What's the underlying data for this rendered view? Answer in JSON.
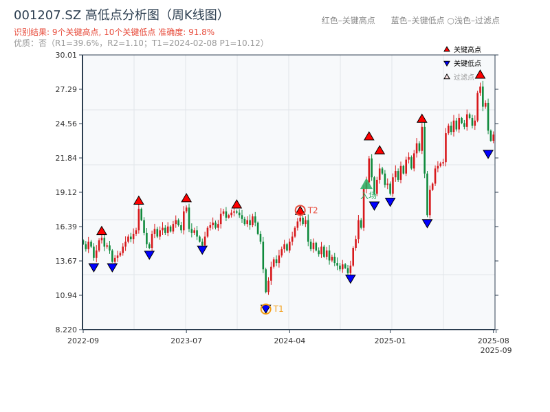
{
  "title": "001207.SZ 高低点分析图（周K线图）",
  "subtitle_result": "识别结果: 9个关键高点, 10个关键低点  准确度: 91.8%",
  "subtitle_quality": "优质：否（R1=39.6%，R2=1.10；T1=2024-02-08 P1=10.12）",
  "header_legend": {
    "red": "红色–关键高点",
    "blue": "蓝色–关键低点",
    "light": "○浅色–过滤点"
  },
  "chart_data": {
    "type": "candlestick",
    "ylim": [
      8.22,
      30.01
    ],
    "yticks": [
      "30.01",
      "27.29",
      "24.56",
      "21.84",
      "19.12",
      "16.39",
      "13.67",
      "10.94",
      "8.220"
    ],
    "xticks": [
      {
        "label": "2022-09",
        "index": 0
      },
      {
        "label": "2023-07",
        "index": 39
      },
      {
        "label": "2024-04",
        "index": 78
      },
      {
        "label": "2025-01",
        "index": 116
      },
      {
        "label": "2025-08",
        "index": 155
      },
      {
        "label": "2025-09",
        "index": 156
      }
    ],
    "grid": true,
    "colors": {
      "up": "#d7191c",
      "down": "#0f8a3c",
      "high_marker": "#ff0000",
      "low_marker": "#0000ff",
      "t1": "#f39c12",
      "t2": "#e74c3c",
      "entry": "#27ae60"
    },
    "close": [
      15.0,
      14.6,
      15.2,
      14.8,
      13.9,
      14.5,
      15.3,
      15.5,
      14.8,
      14.9,
      14.5,
      13.6,
      13.9,
      14.1,
      14.3,
      14.8,
      15.2,
      15.6,
      15.4,
      15.8,
      16.1,
      17.8,
      16.9,
      15.9,
      15.0,
      14.7,
      15.8,
      16.2,
      15.6,
      16.1,
      16.3,
      15.9,
      16.4,
      16.0,
      16.6,
      16.9,
      16.5,
      16.1,
      17.6,
      17.9,
      16.2,
      15.9,
      16.1,
      15.6,
      15.2,
      14.9,
      15.6,
      16.3,
      16.5,
      16.7,
      16.3,
      16.6,
      17.4,
      17.6,
      17.1,
      17.3,
      17.5,
      17.6,
      17.5,
      17.3,
      17.0,
      16.6,
      16.9,
      16.5,
      17.2,
      16.7,
      15.8,
      15.2,
      13.0,
      11.2,
      12.1,
      13.2,
      13.8,
      13.5,
      14.1,
      14.6,
      15.0,
      14.5,
      15.2,
      15.6,
      16.3,
      16.8,
      17.1,
      16.6,
      16.9,
      15.2,
      14.6,
      15.1,
      14.5,
      14.2,
      14.8,
      14.0,
      14.5,
      13.7,
      14.0,
      13.5,
      13.3,
      13.0,
      13.4,
      13.1,
      12.7,
      13.3,
      14.7,
      15.4,
      16.9,
      16.3,
      19.4,
      19.9,
      21.8,
      20.3,
      19.0,
      20.1,
      21.0,
      20.6,
      19.7,
      19.8,
      19.0,
      20.3,
      20.8,
      20.1,
      21.2,
      20.6,
      21.7,
      21.9,
      21.0,
      22.2,
      23.0,
      22.4,
      24.3,
      20.6,
      17.3,
      19.3,
      19.8,
      21.0,
      21.2,
      21.4,
      21.5,
      23.8,
      24.4,
      23.9,
      24.8,
      24.1,
      25.0,
      24.6,
      24.3,
      25.3,
      25.0,
      24.4,
      24.8,
      27.0,
      27.5,
      25.9,
      26.2,
      24.0,
      23.2,
      23.7
    ],
    "key_highs": [
      {
        "index": 7,
        "price": 15.7
      },
      {
        "index": 21,
        "price": 18.1
      },
      {
        "index": 39,
        "price": 18.3
      },
      {
        "index": 58,
        "price": 17.8
      },
      {
        "index": 82,
        "price": 17.3
      },
      {
        "index": 108,
        "price": 23.2
      },
      {
        "index": 112,
        "price": 22.1
      },
      {
        "index": 128,
        "price": 24.6
      },
      {
        "index": 150,
        "price": 28.1
      }
    ],
    "key_lows": [
      {
        "index": 4,
        "price": 13.4
      },
      {
        "index": 11,
        "price": 13.4
      },
      {
        "index": 25,
        "price": 14.4
      },
      {
        "index": 45,
        "price": 14.8
      },
      {
        "index": 69,
        "price": 10.12
      },
      {
        "index": 101,
        "price": 12.5
      },
      {
        "index": 110,
        "price": 18.3
      },
      {
        "index": 116,
        "price": 18.6
      },
      {
        "index": 130,
        "price": 16.9
      },
      {
        "index": 153,
        "price": 22.4
      }
    ],
    "annotations": [
      {
        "label": "T1",
        "index": 69,
        "price": 10.12,
        "color": "#f39c12"
      },
      {
        "label": "T2",
        "index": 82,
        "price": 17.3,
        "color": "#e74c3c"
      },
      {
        "label": "入场",
        "index": 107,
        "price": 19.6,
        "color": "#27ae60"
      }
    ],
    "legend": {
      "position": "top-right",
      "items": [
        "关键高点",
        "关键低点",
        "过滤点"
      ]
    }
  }
}
